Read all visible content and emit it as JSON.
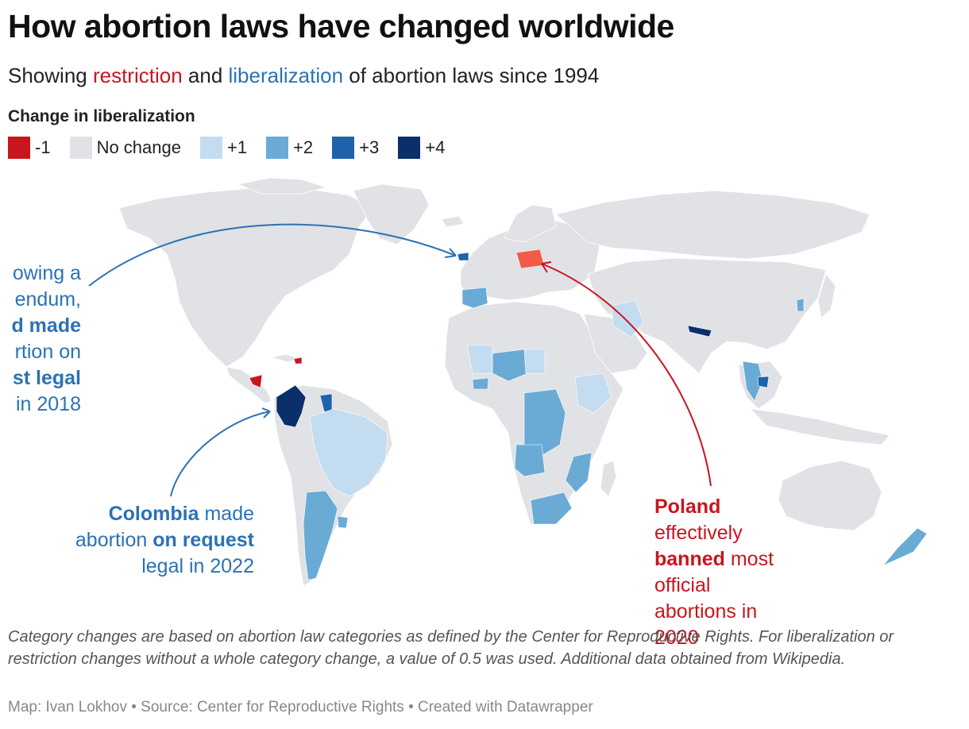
{
  "title": "How abortion laws have changed worldwide",
  "subtitle": {
    "prefix": "Showing ",
    "restriction": "restriction",
    "middle": " and ",
    "liberalization": "liberalization",
    "suffix": " of abortion laws since 1994"
  },
  "legend": {
    "title": "Change in liberalization",
    "items": [
      {
        "label": "-1",
        "color": "#c9151e"
      },
      {
        "label": "No change",
        "color": "#e0e2e6"
      },
      {
        "label": "+1",
        "color": "#c4dcf0"
      },
      {
        "label": "+2",
        "color": "#6aabd6"
      },
      {
        "label": "+3",
        "color": "#1f63ab"
      },
      {
        "label": "+4",
        "color": "#0a2f6b"
      }
    ]
  },
  "colors": {
    "base": "#e0e2e6",
    "restriction": "#c9151e",
    "poland": "#f25c47",
    "liberal": "#2b72b5",
    "restriction_text": "#c9151e"
  },
  "annotations": {
    "ireland": {
      "lines": [
        "owing a",
        "endum,",
        "d made",
        "rtion on",
        "st legal",
        "in 2018"
      ]
    },
    "colombia": {
      "country": "Colombia",
      "t1": " made",
      "t2": "abortion ",
      "bold": "on request",
      "t3": "legal in 2022"
    },
    "poland": {
      "country": "Poland",
      "l2": "effectively",
      "bold": "banned",
      "l3": " most",
      "l4": "official",
      "l5": "abortions in",
      "l6": "2020"
    }
  },
  "notes": "Category changes are based on abortion law categories as defined by the Center for Reproductive Rights. For liberalization or restriction changes without a whole category change, a value of 0.5 was used. Additional data obtained from Wikipedia.",
  "byline": "Map: Ivan Lokhov • Source: Center for Reproductive Rights • Created with Datawrapper"
}
